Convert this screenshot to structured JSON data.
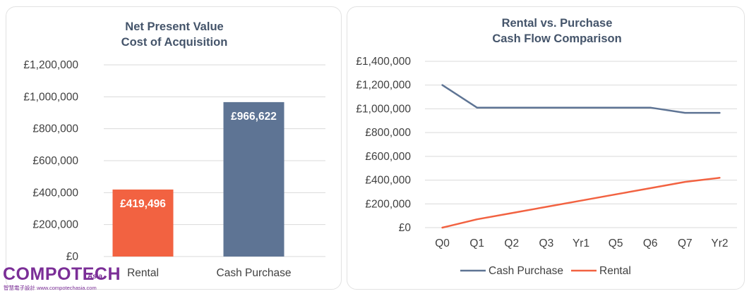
{
  "chart_data": [
    {
      "type": "bar",
      "title_lines": [
        "Net Present Value",
        "Cost of Acquisition"
      ],
      "categories": [
        "Rental",
        "Cash Purchase"
      ],
      "values": [
        419496,
        966622
      ],
      "value_labels": [
        "£419,496",
        "£966,622"
      ],
      "colors": [
        "#f26241",
        "#5e7494"
      ],
      "ylim": [
        0,
        1200000
      ],
      "yticks": [
        0,
        200000,
        400000,
        600000,
        800000,
        1000000,
        1200000
      ],
      "ytick_labels": [
        "£0",
        "£200,000",
        "£400,000",
        "£600,000",
        "£800,000",
        "£1,000,000",
        "£1,200,000"
      ],
      "grid": true,
      "legend": "none"
    },
    {
      "type": "line",
      "title_lines": [
        "Rental vs. Purchase",
        "Cash Flow Comparison"
      ],
      "categories": [
        "Q0",
        "Q1",
        "Q2",
        "Q3",
        "Yr1",
        "Q5",
        "Q6",
        "Q7",
        "Yr2"
      ],
      "series": [
        {
          "name": "Cash Purchase",
          "color": "#5e7494",
          "values": [
            1200000,
            1010000,
            1010000,
            1010000,
            1010000,
            1010000,
            1010000,
            966622,
            966622
          ]
        },
        {
          "name": "Rental",
          "color": "#f26241",
          "values": [
            0,
            70000,
            122000,
            175000,
            227000,
            280000,
            332000,
            385000,
            419496
          ]
        }
      ],
      "ylim": [
        0,
        1400000
      ],
      "yticks": [
        0,
        200000,
        400000,
        600000,
        800000,
        1000000,
        1200000,
        1400000
      ],
      "ytick_labels": [
        "£0",
        "£200,000",
        "£400,000",
        "£600,000",
        "£800,000",
        "£1,000,000",
        "£1,200,000",
        "£1,400,000"
      ],
      "grid": true,
      "legend": "bottom"
    }
  ],
  "logo": {
    "main": "COMPOTECH",
    "sub": "Asia",
    "url": "智慧電子設計 www.compotechasia.com"
  }
}
